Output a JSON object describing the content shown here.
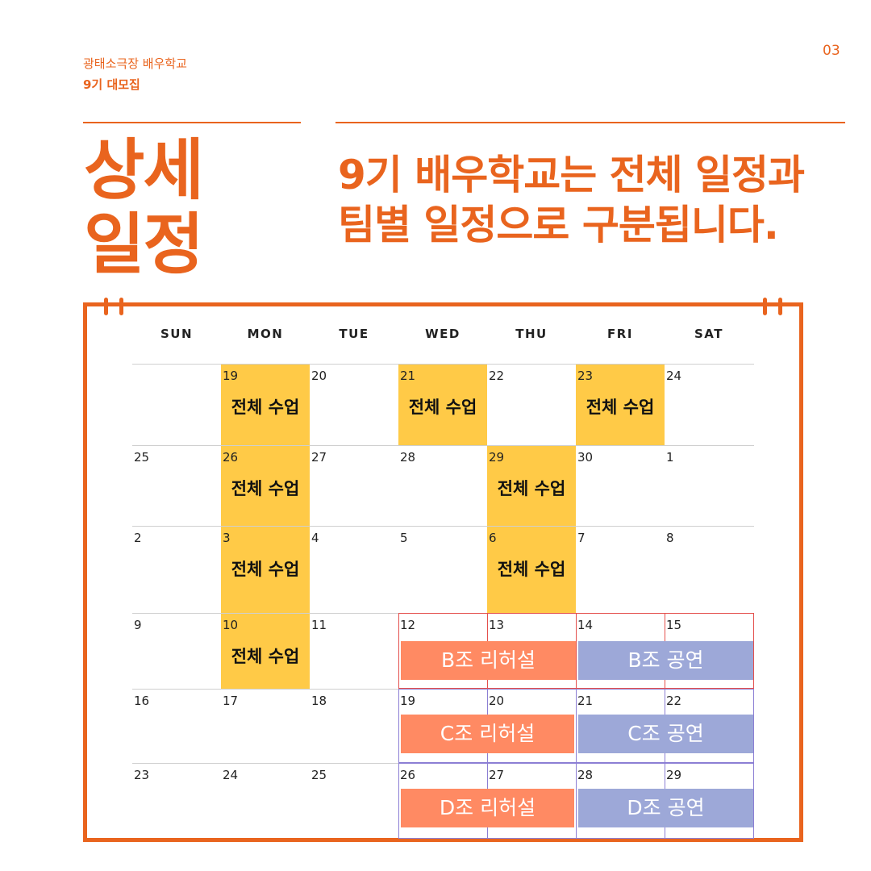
{
  "brand": {
    "name": "광태소극장 배우학교",
    "sub": "9기 대모집"
  },
  "page_number": "03",
  "title": {
    "line1": "상세",
    "line2": "일정"
  },
  "headline": {
    "line1": "9기 배우학교는 전체 일정과",
    "line2": "팀별 일정으로 구분됩니다."
  },
  "calendar": {
    "weekdays": [
      "SUN",
      "MON",
      "TUE",
      "WED",
      "THU",
      "FRI",
      "SAT"
    ],
    "weeks": [
      [
        "",
        "19",
        "20",
        "21",
        "22",
        "23",
        "24"
      ],
      [
        "25",
        "26",
        "27",
        "28",
        "29",
        "30",
        "1"
      ],
      [
        "2",
        "3",
        "4",
        "5",
        "6",
        "7",
        "8"
      ],
      [
        "9",
        "10",
        "11",
        "12",
        "13",
        "14",
        "15"
      ],
      [
        "16",
        "17",
        "18",
        "19",
        "20",
        "21",
        "22"
      ],
      [
        "23",
        "24",
        "25",
        "26",
        "27",
        "28",
        "29"
      ]
    ],
    "class_label": "전체 수업",
    "events": {
      "b_rehearsal": "B조 리허설",
      "b_show": "B조 공연",
      "c_rehearsal": "C조 리허설",
      "c_show": "C조 공연",
      "d_rehearsal": "D조 리허설",
      "d_show": "D조 공연"
    },
    "colors": {
      "accent": "#e9641e",
      "class": "#ffca47",
      "rehearsal": "#ff8a63",
      "show": "#9da8d8"
    }
  }
}
